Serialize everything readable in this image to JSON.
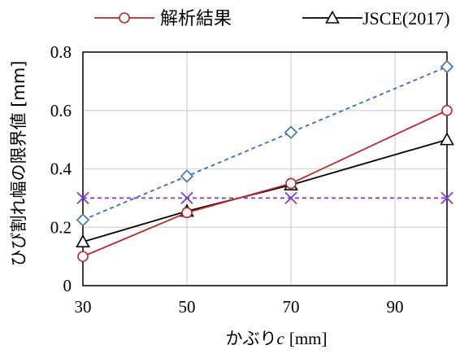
{
  "chart_data": {
    "type": "line",
    "title": "",
    "xlabel": "かぶり",
    "xlabel_var": "c",
    "xlabel_unit": "[mm]",
    "ylabel": "ひび割れ幅の限界値 [mm]",
    "xlim": [
      30,
      100
    ],
    "ylim": [
      0,
      0.8
    ],
    "x_ticks": [
      30,
      50,
      70,
      90
    ],
    "x_tick_labels": [
      "30",
      "50",
      "70",
      "90"
    ],
    "y_ticks": [
      0,
      0.2,
      0.4,
      0.6,
      0.8
    ],
    "y_tick_labels": [
      "0",
      "0.2",
      "0.4",
      "0.6",
      "0.8"
    ],
    "grid": true,
    "legend_position": "top",
    "series": [
      {
        "name": "解析結果",
        "color": "#c0272d",
        "marker": "circle",
        "line_style": "solid",
        "x": [
          30,
          50,
          70,
          100
        ],
        "values": [
          0.1,
          0.25,
          0.35,
          0.6
        ]
      },
      {
        "name": "JSCE(2017)",
        "color": "#000000",
        "marker": "triangle",
        "line_style": "solid",
        "x": [
          30,
          50,
          70,
          100
        ],
        "values": [
          0.15,
          0.255,
          0.345,
          0.5
        ]
      },
      {
        "color": "#3b6cc4",
        "marker": "diamond",
        "line_style": "dashed",
        "x": [
          30,
          50,
          70,
          100
        ],
        "values": [
          0.225,
          0.375,
          0.525,
          0.75
        ]
      },
      {
        "color": "#7a3cc8",
        "marker": "x",
        "line_style": "dashed",
        "x": [
          30,
          50,
          70,
          100
        ],
        "values": [
          0.3,
          0.3,
          0.3,
          0.3
        ]
      }
    ]
  }
}
